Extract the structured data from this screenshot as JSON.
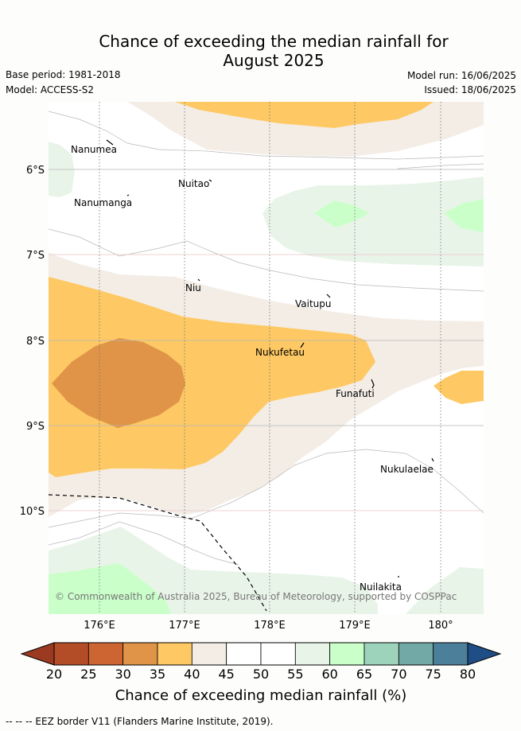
{
  "title_line1": "Chance of exceeding the median rainfall for",
  "title_line2": "August 2025",
  "base_period": "Base period: 1981-2018",
  "model": "Model: ACCESS-S2",
  "model_run": "Model run: 16/06/2025",
  "issued": "Issued: 18/06/2025",
  "lat_labels": [
    "6°S",
    "7°S",
    "8°S",
    "9°S",
    "10°S"
  ],
  "lon_labels": [
    "176°E",
    "177°E",
    "178°E",
    "179°E",
    "180°"
  ],
  "islands": {
    "nanumea": "Nanumea",
    "nuitao": "Nuitao",
    "nanumanga": "Nanumanga",
    "niu": "Niu",
    "vaitupu": "Vaitupu",
    "nukufetau": "Nukufetau",
    "funafuti": "Funafuti",
    "nukulaelae": "Nukulaelae",
    "nuilakita": "Nuilakita"
  },
  "copyright": "© Commonwealth of Australia 2025, Bureau of Meteorology, supported by COSPPac",
  "colorbar": {
    "ticks": [
      "20",
      "25",
      "30",
      "35",
      "40",
      "45",
      "50",
      "55",
      "60",
      "65",
      "70",
      "75",
      "80"
    ],
    "colors": [
      "#b34d27",
      "#cd6533",
      "#e09448",
      "#fec964",
      "#f3ede6",
      "#ffffff",
      "#ffffff",
      "#e9f4e9",
      "#caffca",
      "#9ed3bb",
      "#72a9a6",
      "#4b7f9a"
    ],
    "under_color": "#9c3a21",
    "over_color": "#1f4d86",
    "title": "Chance of exceeding median rainfall (%)"
  },
  "footer": "-- -- -- EEZ border V11 (Flanders Marine Institute, 2019)."
}
